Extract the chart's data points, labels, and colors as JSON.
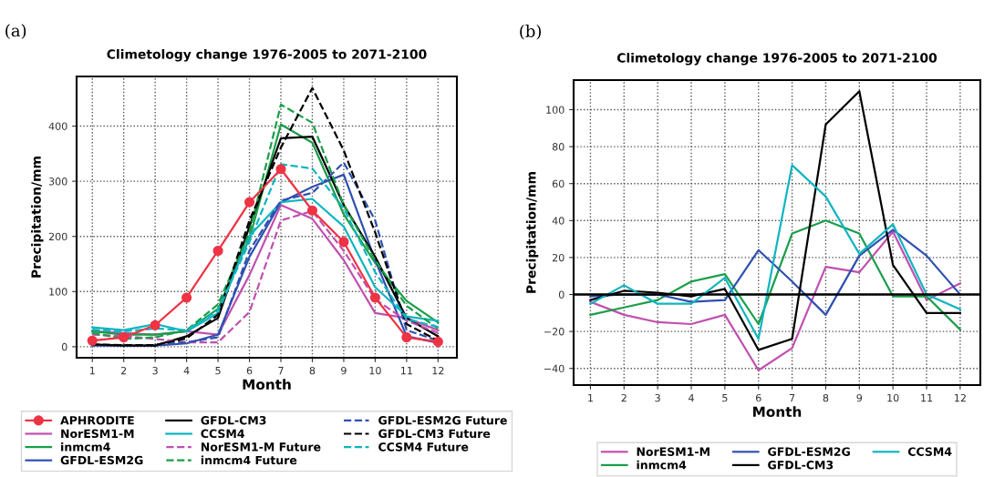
{
  "chart_data": [
    {
      "type": "line",
      "title": "Climetology change 1976-2005 to 2071-2100",
      "xlabel": "Month",
      "ylabel": "Precipitation/mm",
      "annotations": [
        "(a)"
      ],
      "x": [
        1,
        2,
        3,
        4,
        5,
        6,
        7,
        8,
        9,
        10,
        11,
        12
      ],
      "xlim": [
        0.5,
        12.6
      ],
      "xticks": [
        1,
        2,
        3,
        4,
        5,
        6,
        7,
        8,
        9,
        10,
        11,
        12
      ],
      "ylim": [
        -20,
        490
      ],
      "yticks": [
        0,
        100,
        200,
        300,
        400
      ],
      "grid": true,
      "legend": "bottom",
      "marker": "none",
      "line_style": "solid",
      "series": [
        {
          "name": "APHRODITE",
          "color": "#ee3344",
          "marker": "circle",
          "values": [
            11,
            17,
            39,
            89,
            174,
            262,
            322,
            247,
            190,
            89,
            17,
            9
          ]
        },
        {
          "name": "NorESM1-M",
          "color": "#c050b0",
          "values": [
            28,
            25,
            22,
            28,
            22,
            130,
            257,
            232,
            157,
            61,
            52,
            30
          ]
        },
        {
          "name": "inmcm4",
          "color": "#1a9e4a",
          "values": [
            28,
            22,
            22,
            28,
            69,
            196,
            403,
            370,
            240,
            152,
            83,
            44
          ]
        },
        {
          "name": "GFDL-ESM2G",
          "color": "#3050b0",
          "values": [
            2,
            2,
            2,
            6,
            22,
            163,
            262,
            290,
            312,
            157,
            19,
            7
          ]
        },
        {
          "name": "GFDL-CM3",
          "color": "#000000",
          "values": [
            4,
            2,
            2,
            19,
            52,
            218,
            378,
            381,
            257,
            163,
            52,
            19
          ]
        },
        {
          "name": "CCSM4",
          "color": "#10b5c0",
          "values": [
            35,
            30,
            41,
            28,
            61,
            201,
            262,
            268,
            218,
            108,
            55,
            47
          ]
        },
        {
          "name": "NorESM1-M Future",
          "color": "#c050b0",
          "line_style": "dashed",
          "values": [
            22,
            19,
            14,
            8,
            8,
            63,
            229,
            246,
            174,
            86,
            47,
            25
          ]
        },
        {
          "name": "inmcm4 Future",
          "color": "#1a9e4a",
          "line_style": "dashed",
          "values": [
            25,
            14,
            17,
            30,
            77,
            207,
            439,
            406,
            257,
            157,
            74,
            33
          ]
        },
        {
          "name": "GFDL-ESM2G Future",
          "color": "#3050b0",
          "line_style": "dashed",
          "values": [
            3,
            3,
            3,
            8,
            17,
            174,
            265,
            279,
            334,
            229,
            30,
            11
          ]
        },
        {
          "name": "GFDL-CM3 Future",
          "color": "#000000",
          "line_style": "dashed",
          "values": [
            4,
            3,
            3,
            15,
            58,
            229,
            361,
            469,
            356,
            207,
            41,
            11
          ]
        },
        {
          "name": "CCSM4 Future",
          "color": "#10b5c0",
          "line_style": "dashed",
          "values": [
            31,
            28,
            33,
            30,
            66,
            190,
            331,
            323,
            251,
            135,
            50,
            36
          ]
        }
      ]
    },
    {
      "type": "line",
      "title": "Climetology change 1976-2005 to 2071-2100",
      "xlabel": "Month",
      "ylabel": "Precipitation/mm",
      "annotations": [
        "(b)"
      ],
      "x": [
        1,
        2,
        3,
        4,
        5,
        6,
        7,
        8,
        9,
        10,
        11,
        12
      ],
      "xlim": [
        0.5,
        12.6
      ],
      "xticks": [
        1,
        2,
        3,
        4,
        5,
        6,
        7,
        8,
        9,
        10,
        11,
        12
      ],
      "ylim": [
        -49,
        116
      ],
      "yticks": [
        {
          "value": -40,
          "label": "−40"
        },
        {
          "value": -20,
          "label": "−20"
        },
        0,
        20,
        40,
        60,
        80,
        100
      ],
      "grid": true,
      "legend": "bottom",
      "marker": "none",
      "line_style": "solid",
      "ref_lines": [
        {
          "axis": "y",
          "value": 0,
          "color": "#000000",
          "line_style": "solid"
        }
      ],
      "series": [
        {
          "name": "NorESM1-M",
          "color": "#c050b0",
          "values": [
            -4,
            -11,
            -15,
            -16,
            -11,
            -41,
            -29,
            15,
            12,
            34,
            -3,
            6
          ]
        },
        {
          "name": "inmcm4",
          "color": "#1a9e4a",
          "values": [
            -11,
            -7,
            -3,
            7,
            11,
            -16,
            33,
            40,
            33,
            -1,
            -1,
            -19
          ]
        },
        {
          "name": "GFDL-ESM2G",
          "color": "#3050b0",
          "values": [
            -1,
            0,
            0,
            -4,
            -3,
            24,
            7,
            -11,
            21,
            35,
            21,
            0
          ]
        },
        {
          "name": "GFDL-CM3",
          "color": "#000000",
          "values": [
            -3,
            2,
            1,
            -1,
            3,
            -30,
            -24,
            92,
            110,
            16,
            -10,
            -10
          ]
        },
        {
          "name": "CCSM4",
          "color": "#10b5c0",
          "values": [
            -5,
            5,
            -5,
            -5,
            9,
            -24,
            70,
            53,
            22,
            38,
            0,
            -8
          ]
        }
      ]
    }
  ]
}
